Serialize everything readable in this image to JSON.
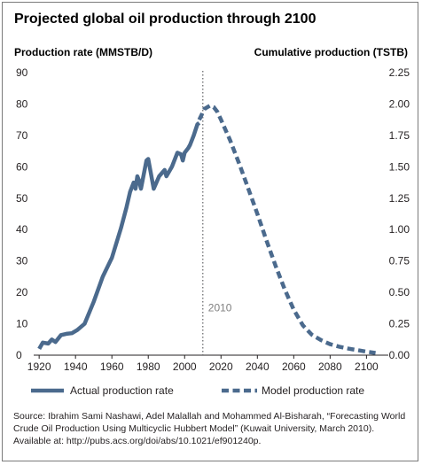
{
  "chart_data": {
    "type": "line",
    "title": "Projected global oil production through 2100",
    "ylabel_left": "Production rate (MMSTB/D)",
    "ylabel_right": "Cumulative production (TSTB)",
    "xlim": [
      1917,
      2112
    ],
    "ylim_left": [
      0,
      90
    ],
    "ylim_right": [
      0,
      2.25
    ],
    "x_ticks": [
      "1920",
      "1940",
      "1960",
      "1980",
      "2000",
      "2020",
      "2040",
      "2060",
      "2080",
      "2100"
    ],
    "y_left_ticks": [
      "0",
      "10",
      "20",
      "30",
      "40",
      "50",
      "60",
      "70",
      "80",
      "90"
    ],
    "y_right_ticks": [
      "0.00",
      "0.25",
      "0.50",
      "0.75",
      "1.00",
      "1.25",
      "1.50",
      "1.75",
      "2.00",
      "2.25"
    ],
    "grid": false,
    "legend_position": "bottom",
    "colors": {
      "series": "#4b6a8d",
      "marker_line": "#6d6e71"
    },
    "series": [
      {
        "name": "Actual production rate",
        "style": "solid",
        "x": [
          1920,
          1922,
          1925,
          1927,
          1929,
          1932,
          1935,
          1938,
          1941,
          1945,
          1950,
          1955,
          1960,
          1965,
          1968,
          1970,
          1972,
          1973,
          1974,
          1975,
          1976,
          1979,
          1980,
          1983,
          1986,
          1989,
          1990,
          1993,
          1996,
          1998,
          1999,
          2000,
          2002,
          2003,
          2005,
          2007,
          2008
        ],
        "y": [
          2,
          4,
          3.7,
          5,
          4.2,
          6.4,
          6.8,
          7,
          8,
          10,
          17,
          25,
          31,
          40.5,
          47,
          52,
          55,
          53,
          57,
          55.5,
          53,
          62,
          62.5,
          53,
          57,
          59,
          57,
          60,
          64.5,
          64,
          62,
          64.5,
          66,
          67,
          70,
          73.5,
          74
        ]
      },
      {
        "name": "Model production rate",
        "style": "dashed",
        "x": [
          2008,
          2011,
          2014,
          2016,
          2018,
          2020,
          2025,
          2030,
          2035,
          2040,
          2045,
          2050,
          2055,
          2060,
          2065,
          2070,
          2075,
          2080,
          2085,
          2090,
          2095,
          2100,
          2105
        ],
        "y": [
          75,
          78.5,
          79.5,
          79,
          77.5,
          75,
          68.5,
          61,
          53,
          45,
          36.5,
          28.5,
          21,
          14.5,
          9.5,
          6.5,
          4.8,
          3.5,
          2.7,
          2.1,
          1.6,
          1.1,
          0.7
        ]
      }
    ],
    "annotations": [
      {
        "x": 2010,
        "label": "2010"
      }
    ]
  },
  "source_text": "Source: Ibrahim Sami Nashawi, Adel Malallah and Mohammed Al-Bisharah, “Forecasting World Crude Oil Production Using Multicyclic Hubbert Model” (Kuwait University, March 2010). Available at: http://pubs.acs.org/doi/abs/10.1021/ef901240p."
}
